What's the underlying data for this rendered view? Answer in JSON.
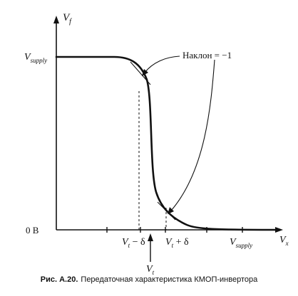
{
  "diagram": {
    "y_axis_label": "V",
    "y_axis_label_sub": "f",
    "x_axis_label": "V",
    "x_axis_label_sub": "x",
    "y_ticks": [
      {
        "main": "V",
        "sub": "supply"
      },
      {
        "main": "0 В",
        "sub": ""
      }
    ],
    "x_ticks": [
      {
        "main": "V",
        "sub": "t",
        "rest": " − δ"
      },
      {
        "main": "V",
        "sub": "t",
        "rest": " + δ"
      },
      {
        "main": "V",
        "sub": "supply",
        "rest": ""
      }
    ],
    "threshold_marker": {
      "main": "V",
      "sub": "t"
    },
    "annotation": "Наклон = −1"
  },
  "caption": {
    "label": "Рис. А.20.",
    "text": "Передаточная характеристика КМОП-инвертора"
  },
  "colors": {
    "ink": "#111111",
    "background": "#ffffff"
  }
}
